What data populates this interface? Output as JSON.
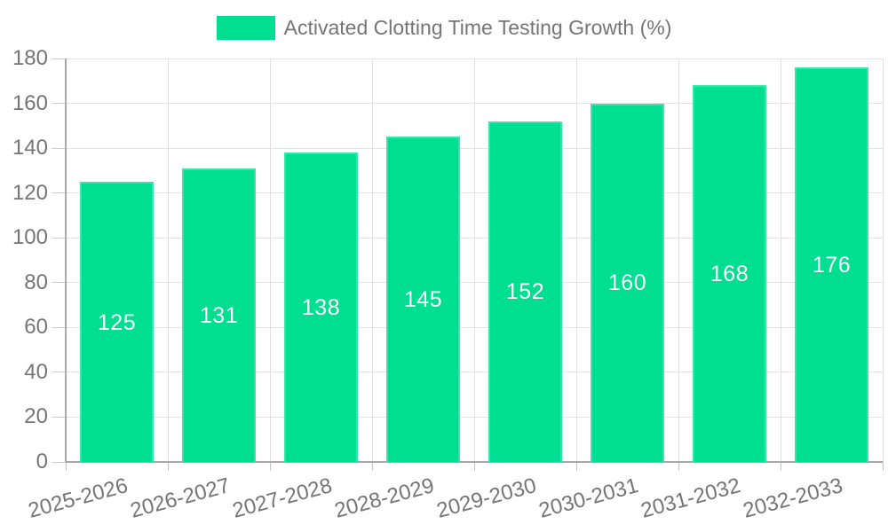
{
  "legend": {
    "label": "Activated Clotting Time Testing Growth (%)"
  },
  "colors": {
    "bar": "#00de92",
    "label": "#757575",
    "data_label": "#ffffff",
    "gridline": "#e4e4e4",
    "axis_line": "#a8a8a8"
  },
  "chart_data": {
    "type": "bar",
    "title": "Activated Clotting Time Testing Growth (%)",
    "categories": [
      "2025-2026",
      "2026-2027",
      "2027-2028",
      "2028-2029",
      "2029-2030",
      "2030-2031",
      "2031-2032",
      "2032-2033"
    ],
    "values": [
      125,
      131,
      138,
      145,
      152,
      160,
      168,
      176
    ],
    "series": [
      {
        "name": "Activated Clotting Time Testing Growth (%)",
        "values": [
          125,
          131,
          138,
          145,
          152,
          160,
          168,
          176
        ]
      }
    ],
    "xlabel": "",
    "ylabel": "",
    "ylim": [
      0,
      180
    ],
    "y_ticks": [
      0,
      20,
      40,
      60,
      80,
      100,
      120,
      140,
      160,
      180
    ],
    "grid": "on",
    "legend_position": "top-center",
    "data_labels": "inside-center-white",
    "x_label_rotation_deg": -15
  }
}
